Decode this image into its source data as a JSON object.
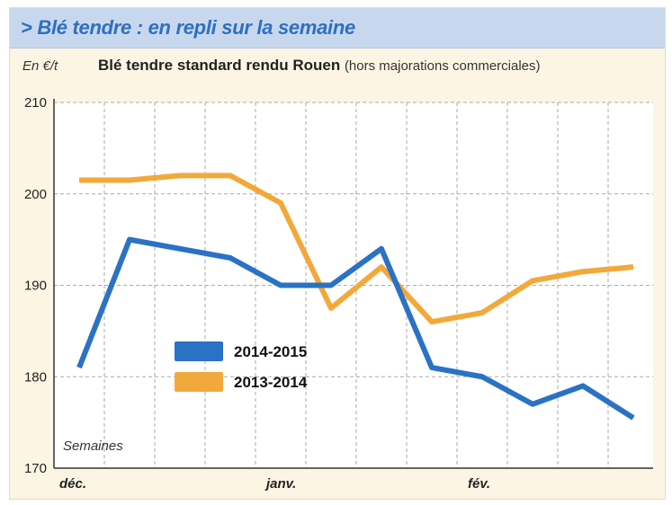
{
  "header": {
    "title": "> Blé tendre : en repli sur la semaine",
    "unit": "En €/t",
    "chart_title_main": "Blé tendre standard rendu Rouen",
    "chart_title_sub": "(hors majorations commerciales)"
  },
  "colors": {
    "series_2014_2015": "#2a72c4",
    "series_2013_2014": "#f2a93b",
    "title_bar": "#c7d8ee",
    "title_text": "#2f6fc0",
    "background": "#fdf5e4"
  },
  "chart_data": {
    "type": "line",
    "title": "Blé tendre standard rendu Rouen",
    "subtitle": "(hors majorations commerciales)",
    "ylabel": "En €/t",
    "xlabel": "Semaines",
    "ylim": [
      170,
      210
    ],
    "yticks": [
      170,
      180,
      190,
      200,
      210
    ],
    "x_axis_labels": [
      "déc.",
      "janv.",
      "fév."
    ],
    "x_label_positions": [
      0,
      4,
      8
    ],
    "x": [
      0,
      1,
      2,
      3,
      4,
      5,
      6,
      7,
      8,
      9,
      10,
      11
    ],
    "grid": true,
    "legend_position": "bottom-left",
    "series": [
      {
        "name": "2014-2015",
        "color": "#2a72c4",
        "values": [
          181,
          195,
          194,
          193,
          190,
          190,
          194,
          181,
          180,
          177,
          179,
          175.5
        ]
      },
      {
        "name": "2013-2014",
        "color": "#f2a93b",
        "values": [
          201.5,
          201.5,
          202,
          202,
          199,
          187.5,
          192,
          186,
          187,
          190.5,
          191.5,
          192
        ]
      }
    ]
  }
}
